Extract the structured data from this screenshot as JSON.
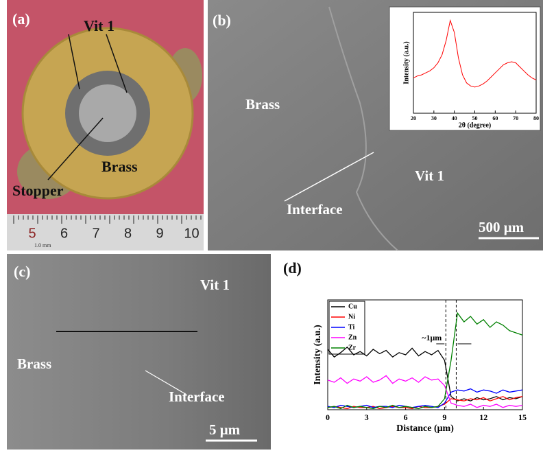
{
  "panels": [
    {
      "label": "(a)",
      "texts": [
        "Vit 1",
        "Stopper",
        "Brass"
      ],
      "ruler_labels": [
        "5",
        "6",
        "7",
        "8",
        "9",
        "10"
      ],
      "ruler_unit": "1.0 mm"
    },
    {
      "label": "(b)",
      "texts": [
        "Brass",
        "Vit 1",
        "Interface"
      ],
      "scale_bar": "500 μm"
    },
    {
      "label": "(c)",
      "texts": [
        "Vit 1",
        "Brass",
        "Interface"
      ],
      "scale_bar": "5 μm"
    },
    {
      "label": "(d)"
    }
  ],
  "chart_data": [
    {
      "type": "line",
      "xlabel": "2θ (degree)",
      "ylabel": "Intensity (a.u.)",
      "x": [
        20,
        22,
        24,
        26,
        28,
        30,
        32,
        34,
        36,
        38,
        40,
        42,
        44,
        46,
        48,
        50,
        52,
        54,
        56,
        58,
        60,
        62,
        64,
        66,
        68,
        70,
        72,
        74,
        76,
        78,
        80
      ],
      "series": [
        {
          "color": "#ff0000",
          "values": [
            0.35,
            0.37,
            0.38,
            0.4,
            0.42,
            0.45,
            0.5,
            0.58,
            0.72,
            0.92,
            0.8,
            0.55,
            0.38,
            0.3,
            0.27,
            0.26,
            0.27,
            0.29,
            0.32,
            0.36,
            0.4,
            0.44,
            0.48,
            0.5,
            0.51,
            0.5,
            0.46,
            0.42,
            0.38,
            0.35,
            0.33
          ]
        }
      ],
      "xlim": [
        20,
        80
      ],
      "xticks": [
        20,
        30,
        40,
        50,
        60,
        70,
        80
      ],
      "ylim": [
        0,
        1
      ]
    },
    {
      "type": "line",
      "xlabel": "Distance (μm)",
      "ylabel": "Intensity (a.u.)",
      "annotation": "~1μm",
      "vlines": [
        9.1,
        9.9
      ],
      "x": [
        0,
        0.5,
        1,
        1.5,
        2,
        2.5,
        3,
        3.5,
        4,
        4.5,
        5,
        5.5,
        6,
        6.5,
        7,
        7.5,
        8,
        8.5,
        9,
        9.5,
        10,
        10.5,
        11,
        11.5,
        12,
        12.5,
        13,
        13.5,
        14,
        14.5,
        15
      ],
      "series": [
        {
          "name": "Cu",
          "color": "#000000",
          "values": [
            0.55,
            0.48,
            0.52,
            0.57,
            0.5,
            0.53,
            0.49,
            0.55,
            0.51,
            0.54,
            0.48,
            0.52,
            0.5,
            0.56,
            0.49,
            0.53,
            0.5,
            0.54,
            0.45,
            0.12,
            0.08,
            0.1,
            0.08,
            0.11,
            0.09,
            0.1,
            0.12,
            0.09,
            0.11,
            0.1,
            0.12
          ]
        },
        {
          "name": "Ni",
          "color": "#ff0000",
          "values": [
            0.02,
            0.03,
            0.02,
            0.01,
            0.03,
            0.02,
            0.02,
            0.03,
            0.01,
            0.02,
            0.03,
            0.02,
            0.02,
            0.01,
            0.03,
            0.02,
            0.02,
            0.03,
            0.05,
            0.1,
            0.09,
            0.08,
            0.1,
            0.09,
            0.11,
            0.08,
            0.1,
            0.12,
            0.09,
            0.11,
            0.12
          ]
        },
        {
          "name": "Ti",
          "color": "#0000ff",
          "values": [
            0.03,
            0.02,
            0.04,
            0.03,
            0.02,
            0.03,
            0.04,
            0.02,
            0.03,
            0.03,
            0.02,
            0.04,
            0.03,
            0.02,
            0.03,
            0.04,
            0.03,
            0.02,
            0.06,
            0.16,
            0.18,
            0.17,
            0.19,
            0.16,
            0.18,
            0.17,
            0.15,
            0.18,
            0.16,
            0.17,
            0.18
          ]
        },
        {
          "name": "Zn",
          "color": "#ff00ff",
          "values": [
            0.27,
            0.25,
            0.29,
            0.24,
            0.28,
            0.26,
            0.3,
            0.25,
            0.27,
            0.31,
            0.24,
            0.28,
            0.26,
            0.29,
            0.25,
            0.3,
            0.27,
            0.28,
            0.22,
            0.06,
            0.04,
            0.03,
            0.05,
            0.02,
            0.04,
            0.03,
            0.05,
            0.02,
            0.04,
            0.03,
            0.04
          ]
        },
        {
          "name": "Zr",
          "color": "#008000",
          "values": [
            0.02,
            0.03,
            0.01,
            0.04,
            0.02,
            0.03,
            0.02,
            0.01,
            0.03,
            0.02,
            0.04,
            0.02,
            0.03,
            0.02,
            0.01,
            0.03,
            0.02,
            0.03,
            0.1,
            0.45,
            0.88,
            0.8,
            0.85,
            0.78,
            0.82,
            0.75,
            0.8,
            0.77,
            0.72,
            0.7,
            0.68
          ]
        }
      ],
      "xlim": [
        0,
        15
      ],
      "xticks": [
        0,
        3,
        6,
        9,
        12,
        15
      ],
      "ylim": [
        0,
        1
      ]
    }
  ]
}
